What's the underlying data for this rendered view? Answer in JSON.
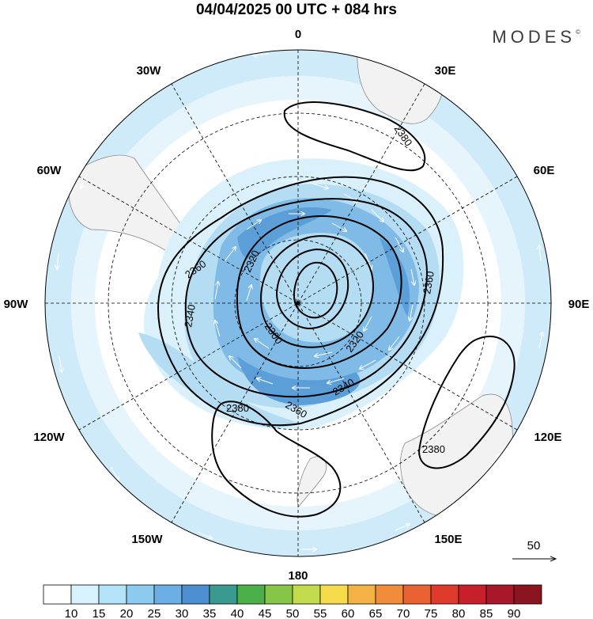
{
  "title": "04/04/2025  00 UTC  + 084 hrs",
  "brand": "MODES",
  "brand_mark": "©",
  "meridian_labels": {
    "m0": "0",
    "m30e": "30E",
    "m60e": "60E",
    "m90e": "90E",
    "m120e": "120E",
    "m150e": "150E",
    "m180": "180",
    "m150w": "150W",
    "m120w": "120W",
    "m90w": "90W",
    "m60w": "60W",
    "m30w": "30W"
  },
  "contour_labels": {
    "c2380_top": "2380",
    "c2360_left": "2360",
    "c2320_a": "2320",
    "c2340_left": "2340",
    "c2300": "2300",
    "c2320_b": "2320",
    "c2360_right": "2360",
    "c2340_bottom": "2340",
    "c2360_bottom": "2360",
    "c2380_bottomleft": "2380",
    "c2380_right": "2380"
  },
  "reference_vector": {
    "label": "50"
  },
  "colorbar": {
    "colors": [
      "#ffffff",
      "#d8f2fd",
      "#b3e3f9",
      "#8ccaf0",
      "#6aaee3",
      "#4b8fd0",
      "#3a9a8e",
      "#4cb04a",
      "#86c548",
      "#c2db4c",
      "#f6dc4c",
      "#f4b244",
      "#f08c3a",
      "#ea6232",
      "#df3a2c",
      "#c8202a",
      "#a8182a",
      "#8a1420"
    ],
    "labels": [
      "10",
      "15",
      "20",
      "25",
      "30",
      "35",
      "40",
      "45",
      "50",
      "55",
      "60",
      "65",
      "70",
      "75",
      "80",
      "85",
      "90"
    ]
  },
  "map_colors": {
    "land": "#f2f2f2",
    "shade_light": "#daf1fb",
    "shade_mid": "#b4dcf3",
    "shade_dark": "#7fbbe6",
    "shade_core": "#5c9fd8"
  }
}
